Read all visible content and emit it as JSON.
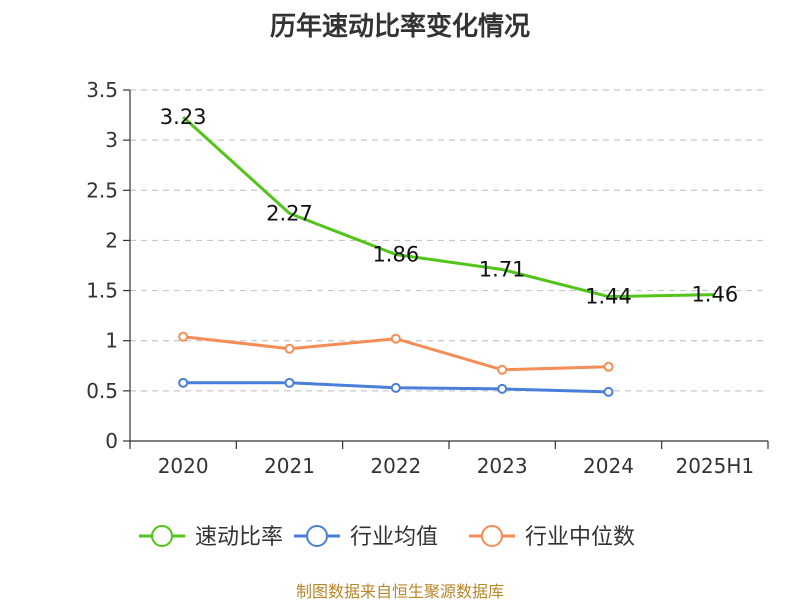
{
  "chart_data": {
    "type": "line",
    "title": "历年速动比率变化情况",
    "categories": [
      "2020",
      "2021",
      "2022",
      "2023",
      "2024",
      "2025H1"
    ],
    "ylim": [
      0,
      3.5
    ],
    "yticks": [
      "0",
      "0.5",
      "1",
      "1.5",
      "2",
      "2.5",
      "3",
      "3.5"
    ],
    "grid": true,
    "legend_position": "bottom",
    "series": [
      {
        "name": "速动比率",
        "color": "#52c41a",
        "values": [
          3.23,
          2.27,
          1.86,
          1.71,
          1.44,
          1.46
        ],
        "labels": [
          "3.23",
          "2.27",
          "1.86",
          "1.71",
          "1.44",
          "1.46"
        ]
      },
      {
        "name": "行业均值",
        "color": "#4a7fd9",
        "values": [
          0.58,
          0.58,
          0.53,
          0.52,
          0.49,
          null
        ]
      },
      {
        "name": "行业中位数",
        "color": "#f58d57",
        "values": [
          1.04,
          0.92,
          1.02,
          0.71,
          0.74,
          null
        ]
      }
    ]
  },
  "source_note": "制图数据来自恒生聚源数据库"
}
